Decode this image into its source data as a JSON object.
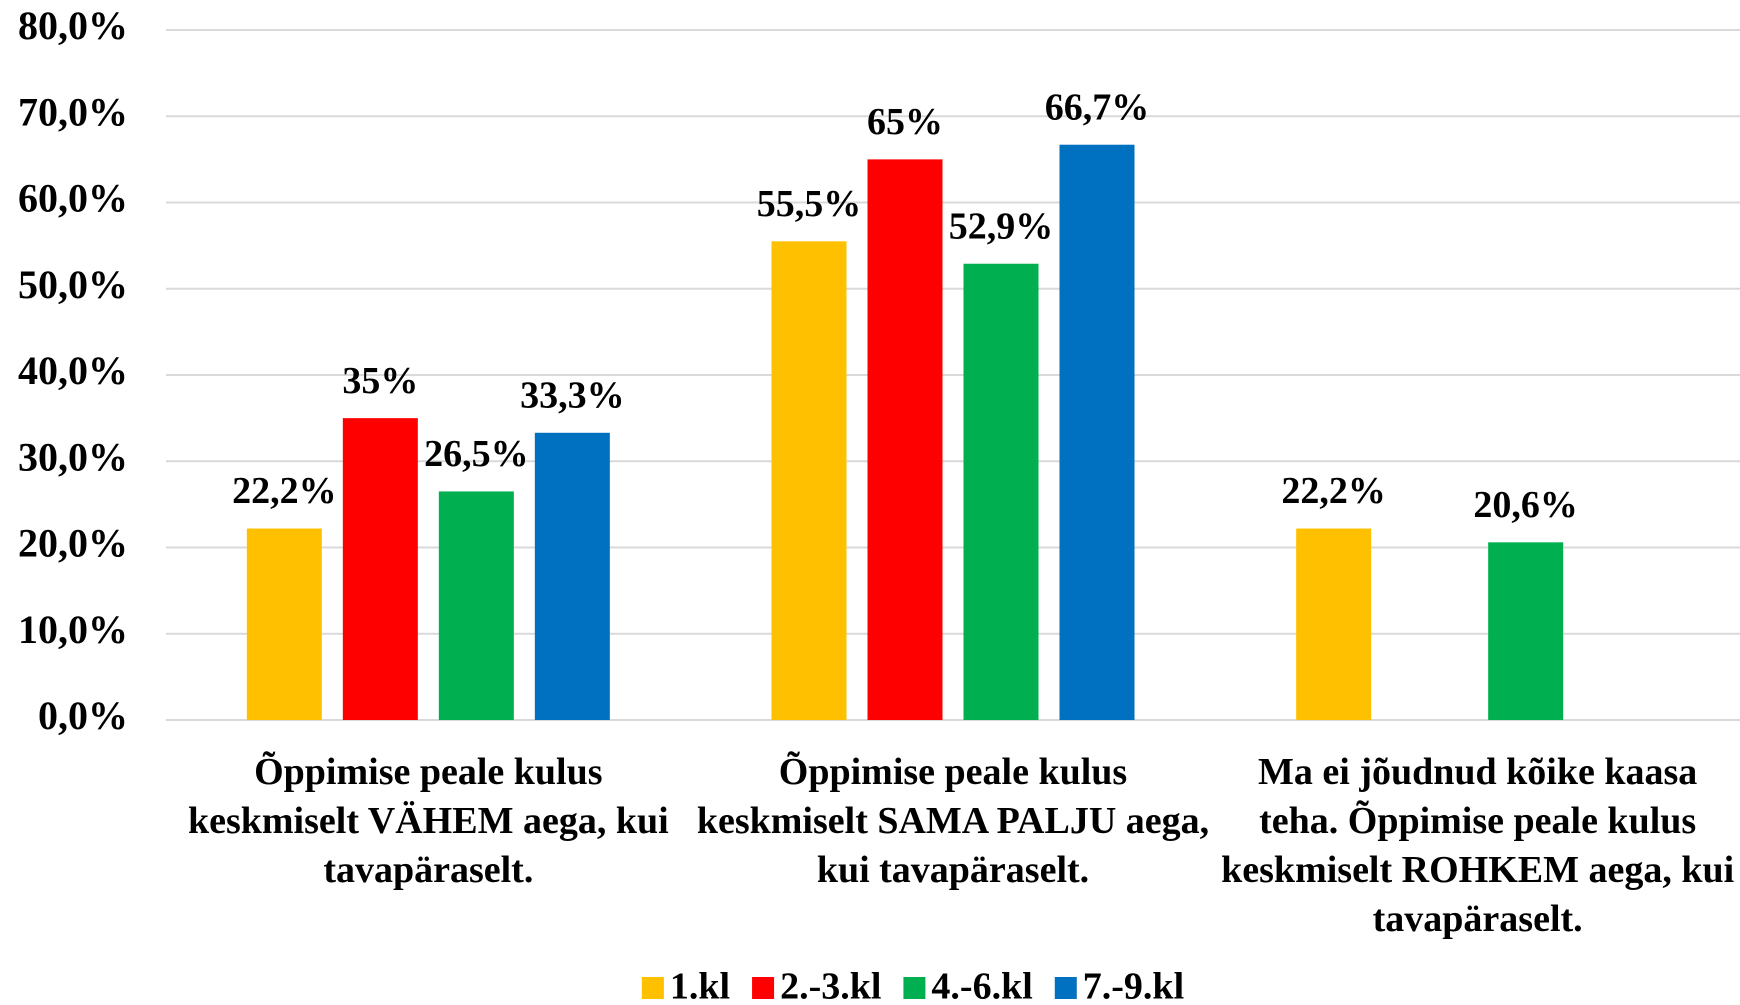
{
  "chart_data": {
    "type": "bar",
    "categories": [
      "Õppimise peale kulus keskmiselt VÄHEM aega, kui tavapäraselt.",
      "Õppimise peale kulus keskmiselt SAMA PALJU aega, kui tavapäraselt.",
      "Ma ei jõudnud kõike kaasa teha. Õppimise peale kulus keskmiselt ROHKEM aega, kui tavapäraselt."
    ],
    "series": [
      {
        "name": "1.kl",
        "color": "#ffc000",
        "values": [
          22.2,
          55.5,
          22.2
        ],
        "value_labels": [
          "22,2%",
          "55,5%",
          "22,2%"
        ]
      },
      {
        "name": "2.-3.kl",
        "color": "#ff0000",
        "values": [
          35,
          65,
          null
        ],
        "value_labels": [
          "35%",
          "65%",
          null
        ]
      },
      {
        "name": "4.-6.kl",
        "color": "#00b050",
        "values": [
          26.5,
          52.9,
          20.6
        ],
        "value_labels": [
          "26,5%",
          "52,9%",
          "20,6%"
        ]
      },
      {
        "name": "7.-9.kl",
        "color": "#0070c0",
        "values": [
          33.3,
          66.7,
          null
        ],
        "value_labels": [
          "33,3%",
          "66,7%",
          null
        ]
      }
    ],
    "ylim": [
      0,
      80
    ],
    "yticks": [
      {
        "value": 0,
        "label": "0,0%"
      },
      {
        "value": 10,
        "label": "10,0%"
      },
      {
        "value": 20,
        "label": "20,0%"
      },
      {
        "value": 30,
        "label": "30,0%"
      },
      {
        "value": 40,
        "label": "40,0%"
      },
      {
        "value": 50,
        "label": "50,0%"
      },
      {
        "value": 60,
        "label": "60,0%"
      },
      {
        "value": 70,
        "label": "70,0%"
      },
      {
        "value": 80,
        "label": "80,0%"
      }
    ],
    "grid": true,
    "legend": "bottom"
  }
}
